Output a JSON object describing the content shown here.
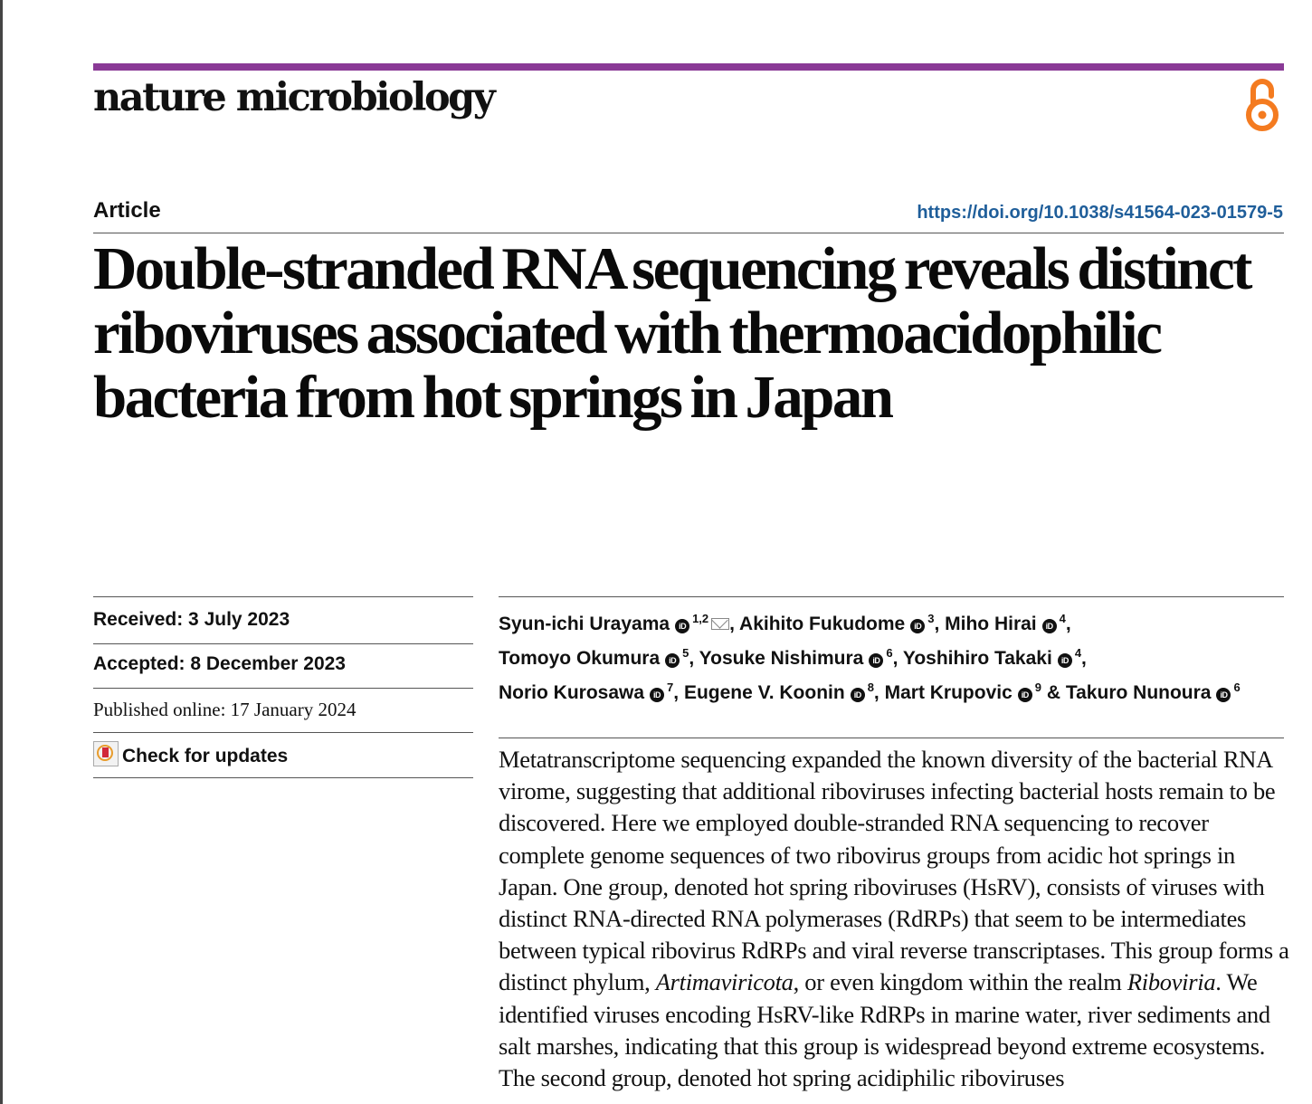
{
  "journal": {
    "name": "nature microbiology",
    "accent_color": "#8a3a96",
    "open_access_icon": "open-access-icon"
  },
  "article": {
    "type": "Article",
    "doi": "https://doi.org/10.1038/s41564-023-01579-5",
    "title": "Double-stranded RNA sequencing reveals distinct riboviruses associated with thermoacidophilic bacteria from hot springs in Japan"
  },
  "dates": {
    "received": "Received: 3 July 2023",
    "accepted": "Accepted: 8 December 2023",
    "published": "Published online: 17 January 2024"
  },
  "updates": {
    "label": "Check for updates"
  },
  "authors": [
    {
      "name": "Syun-ichi Urayama",
      "aff": "1,2",
      "corresponding": true,
      "sep": ", "
    },
    {
      "name": "Akihito Fukudome",
      "aff": "3",
      "sep": ", "
    },
    {
      "name": "Miho Hirai",
      "aff": "4",
      "sep": ","
    },
    {
      "name": "Tomoyo Okumura",
      "aff": "5",
      "sep": ", "
    },
    {
      "name": "Yosuke Nishimura",
      "aff": "6",
      "sep": ", "
    },
    {
      "name": "Yoshihiro Takaki",
      "aff": "4",
      "sep": ","
    },
    {
      "name": "Norio Kurosawa",
      "aff": "7",
      "sep": ", "
    },
    {
      "name": "Eugene V. Koonin",
      "aff": "8",
      "sep": ", "
    },
    {
      "name": "Mart Krupovic",
      "aff": "9",
      "sep": " & "
    },
    {
      "name": "Takuro Nunoura",
      "aff": "6",
      "sep": ""
    }
  ],
  "abstract": {
    "p1": "Metatranscriptome sequencing expanded the known diversity of the bacterial RNA virome, suggesting that additional riboviruses infecting bacterial hosts remain to be discovered. Here we employed double-stranded RNA sequencing to recover complete genome sequences of two ribovirus groups from acidic hot springs in Japan. One group, denoted hot spring riboviruses (HsRV), consists of viruses with distinct RNA-directed RNA polymerases (RdRPs) that seem to be intermediates between typical ribovirus RdRPs and viral reverse transcriptases. This group forms a distinct phylum, ",
    "taxon1": "Artimaviricota",
    "p2": ", or even kingdom within the realm ",
    "taxon2": "Riboviria",
    "p3": ". We identified viruses encoding HsRV-like RdRPs in marine water, river sediments and salt marshes, indicating that this group is widespread beyond extreme ecosystems. The second group, denoted hot spring acidiphilic riboviruses"
  }
}
